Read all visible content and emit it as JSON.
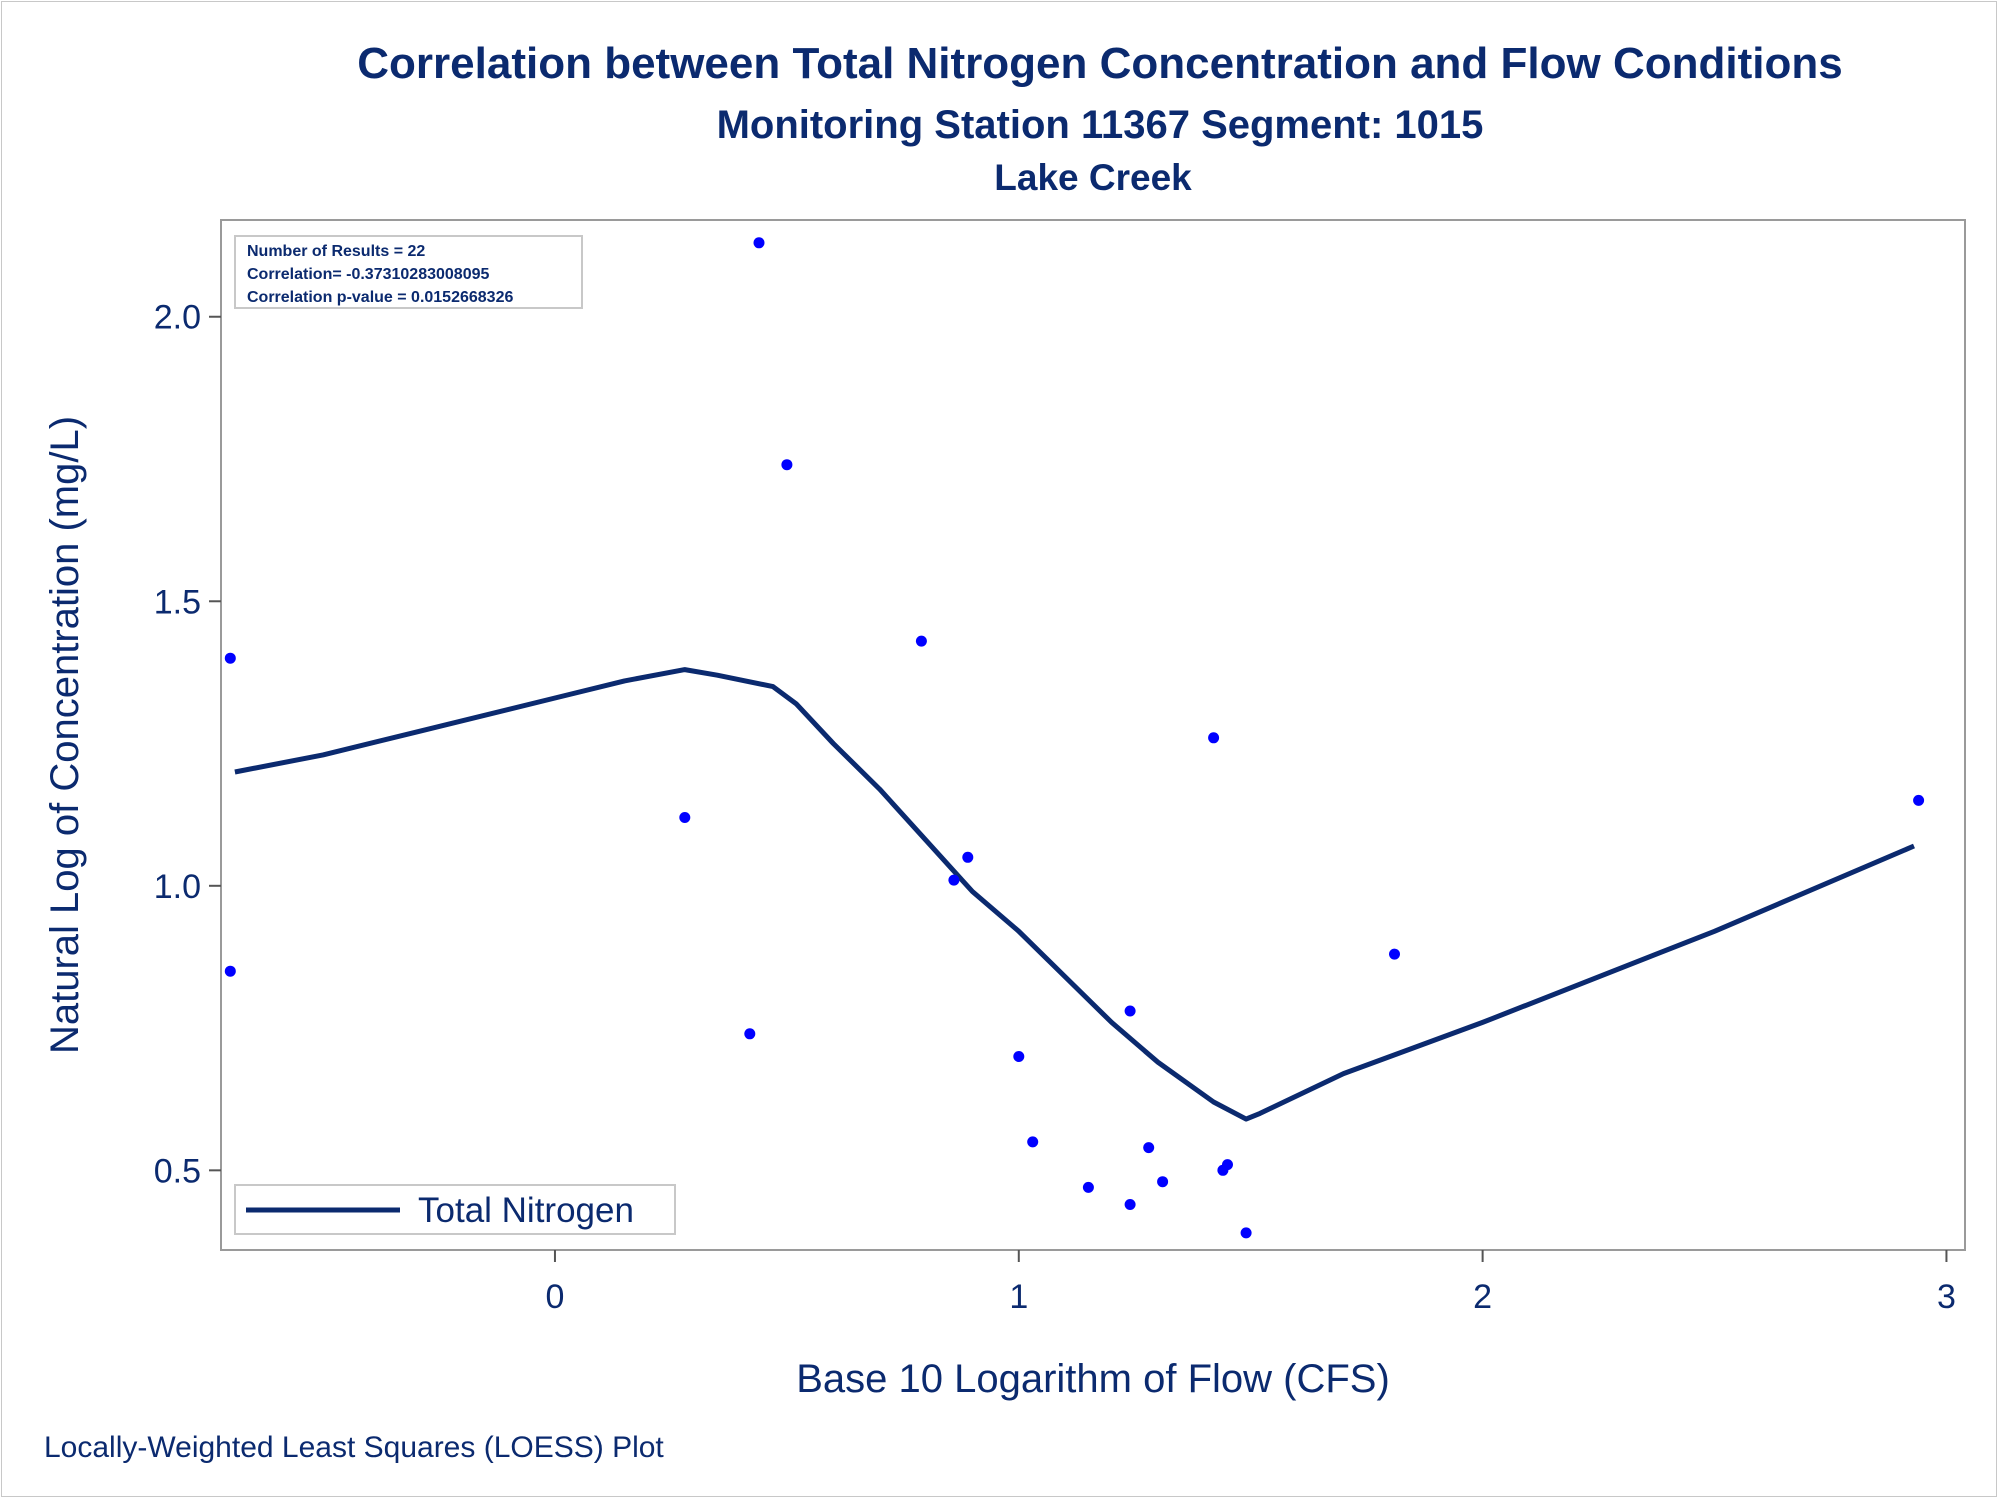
{
  "chart_data": {
    "type": "scatter",
    "title": "Correlation between Total Nitrogen Concentration and Flow Conditions",
    "subtitle": "Monitoring Station 11367 Segment: 1015",
    "subtitle2": "Lake Creek",
    "xlabel": "Base 10 Logarithm of Flow (CFS)",
    "ylabel": "Natural Log of Concentration (mg/L)",
    "footnote": "Locally-Weighted Least Squares (LOESS) Plot",
    "xlim": [
      -0.72,
      3.04
    ],
    "ylim": [
      0.36,
      2.17
    ],
    "xticks": [
      0,
      1,
      2,
      3
    ],
    "xtick_labels": [
      "0",
      "1",
      "2",
      "3"
    ],
    "yticks": [
      0.5,
      1.0,
      1.5,
      2.0
    ],
    "ytick_labels": [
      "0.5",
      "1.0",
      "1.5",
      "2.0"
    ],
    "grid": false,
    "legend": {
      "position": "bottom-left",
      "entries": [
        "Total Nitrogen"
      ]
    },
    "stats_box": {
      "position": "top-left",
      "lines": [
        "Number of Results = 22",
        "Correlation= -0.37310283008095",
        "Correlation p-value = 0.0152668326"
      ]
    },
    "series": [
      {
        "kind": "points",
        "color": "#0000ff",
        "x": [
          -0.7,
          -0.7,
          0.28,
          0.42,
          0.44,
          0.5,
          0.79,
          0.86,
          0.89,
          1.0,
          1.03,
          1.15,
          1.24,
          1.24,
          1.28,
          1.31,
          1.42,
          1.44,
          1.45,
          1.49,
          1.81,
          2.94
        ],
        "y": [
          1.4,
          0.85,
          1.12,
          0.74,
          2.13,
          1.74,
          1.43,
          1.01,
          1.05,
          0.7,
          0.55,
          0.47,
          0.78,
          0.44,
          0.54,
          0.48,
          1.26,
          0.5,
          0.51,
          0.39,
          0.88,
          1.15
        ]
      },
      {
        "name": "Total Nitrogen",
        "kind": "line",
        "color": "#0b2a6f",
        "x": [
          -0.69,
          -0.5,
          -0.3,
          0.0,
          0.15,
          0.28,
          0.35,
          0.47,
          0.52,
          0.6,
          0.7,
          0.8,
          0.9,
          1.0,
          1.1,
          1.2,
          1.3,
          1.42,
          1.49,
          1.52,
          1.7,
          2.0,
          2.5,
          2.93
        ],
        "y": [
          1.2,
          1.23,
          1.27,
          1.33,
          1.36,
          1.38,
          1.37,
          1.35,
          1.32,
          1.25,
          1.17,
          1.08,
          0.99,
          0.92,
          0.84,
          0.76,
          0.69,
          0.62,
          0.59,
          0.6,
          0.67,
          0.76,
          0.92,
          1.07
        ]
      }
    ]
  }
}
